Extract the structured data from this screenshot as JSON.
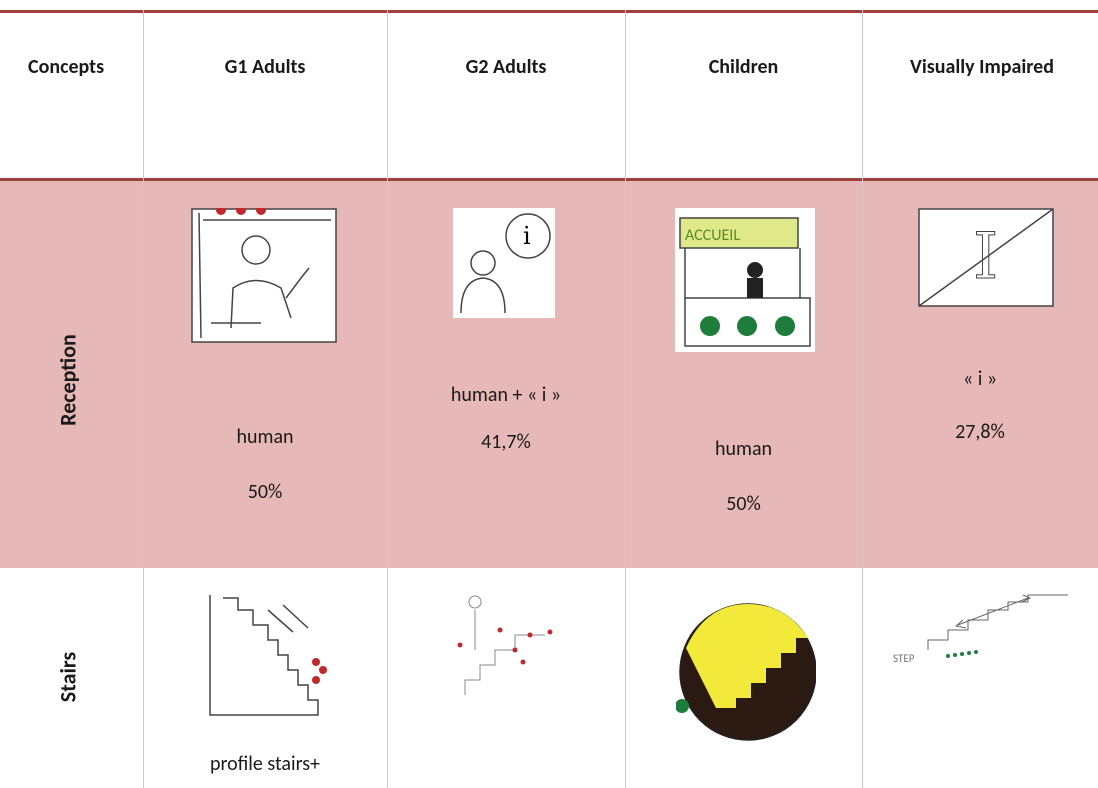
{
  "table": {
    "header": [
      "Concepts",
      "G1 Adults",
      "G2 Adults",
      "Children",
      "Visually Impaired"
    ],
    "rows": [
      {
        "concept": "Reception",
        "cells": [
          [
            "human",
            "50%"
          ],
          [
            "human + « i »",
            "41,7%"
          ],
          [
            "human",
            "50%"
          ],
          [
            "« i »",
            "27,8%"
          ]
        ]
      },
      {
        "concept": "Stairs",
        "cells": [
          [
            "profile stairs+"
          ]
        ]
      }
    ]
  }
}
